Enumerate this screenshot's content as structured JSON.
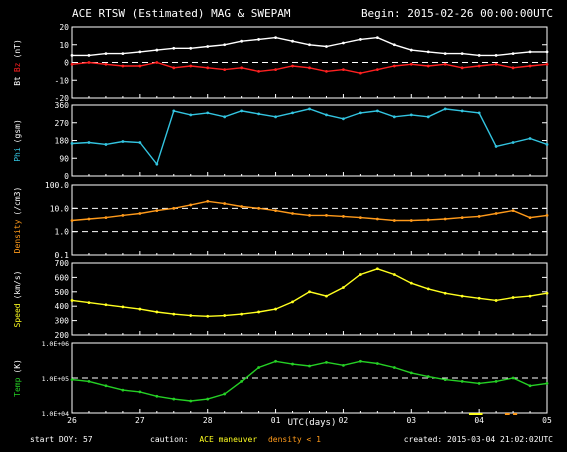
{
  "header": {
    "title": "ACE RTSW (Estimated) MAG & SWEPAM",
    "begin": "Begin: 2015-02-26 00:00:00UTC"
  },
  "footer": {
    "start_doy": "start DOY:  57",
    "caution_prefix": "caution:",
    "caution_ace": "ACE maneuver",
    "caution_density": "density < 1",
    "created": "created: 2015-03-04 21:02:02UTC"
  },
  "colors": {
    "frame": "#ffffff",
    "bt": "#ffffff",
    "bz": "#ff2020",
    "phi": "#33c4e0",
    "density": "#ff9a1a",
    "speed": "#ffff20",
    "temp": "#25d025",
    "maneuver": "#ffff20",
    "lowdensity": "#ff9a1a"
  },
  "chart_data": {
    "type": "line",
    "xlabel": "UTC(days)",
    "x_ticks": [
      "26",
      "27",
      "28",
      "01",
      "02",
      "03",
      "04",
      "05"
    ],
    "x_range_days": [
      0,
      7
    ],
    "x_values_days": [
      0,
      0.25,
      0.5,
      0.75,
      1.0,
      1.25,
      1.5,
      1.75,
      2.0,
      2.25,
      2.5,
      2.75,
      3.0,
      3.25,
      3.5,
      3.75,
      4.0,
      4.25,
      4.5,
      4.75,
      5.0,
      5.25,
      5.5,
      5.75,
      6.0,
      6.25,
      6.5,
      6.75,
      7.0
    ],
    "panels": [
      {
        "id": "mag",
        "ylabel_parts": [
          "Bt",
          "Bz",
          "(nT)"
        ],
        "ylim": [
          -20,
          20
        ],
        "scale": "linear",
        "yticks": [
          -20,
          -10,
          0,
          10,
          20
        ],
        "ytick_labels": [
          "-20",
          "-10",
          "0",
          "10",
          "20"
        ],
        "dashed": [
          0
        ],
        "series": [
          {
            "name": "Bt",
            "values": [
              4,
              4,
              5,
              5,
              6,
              7,
              8,
              8,
              9,
              10,
              12,
              13,
              14,
              12,
              10,
              9,
              11,
              13,
              14,
              10,
              7,
              6,
              5,
              5,
              4,
              4,
              5,
              6,
              6
            ]
          },
          {
            "name": "Bz",
            "values": [
              -1,
              0,
              -1,
              -2,
              -2,
              0,
              -3,
              -2,
              -3,
              -4,
              -3,
              -5,
              -4,
              -2,
              -3,
              -5,
              -4,
              -6,
              -4,
              -2,
              -1,
              -2,
              -1,
              -3,
              -2,
              -1,
              -3,
              -2,
              -1
            ]
          }
        ]
      },
      {
        "id": "phi",
        "ylabel_parts": [
          "Phi",
          "(gsm)"
        ],
        "ylim": [
          0,
          360
        ],
        "scale": "linear",
        "yticks": [
          0,
          90,
          180,
          270,
          360
        ],
        "ytick_labels": [
          "0",
          "90",
          "180",
          "270",
          "360"
        ],
        "dashed": [],
        "series": [
          {
            "name": "Phi",
            "values": [
              165,
              170,
              160,
              175,
              170,
              60,
              330,
              310,
              320,
              300,
              330,
              315,
              300,
              320,
              340,
              310,
              290,
              320,
              330,
              300,
              310,
              300,
              340,
              330,
              320,
              150,
              170,
              190,
              160
            ]
          }
        ]
      },
      {
        "id": "density",
        "ylabel_parts": [
          "Density",
          "(/cm3)"
        ],
        "ylim": [
          0.1,
          100
        ],
        "scale": "log",
        "yticks": [
          0.1,
          1,
          10,
          100
        ],
        "ytick_labels": [
          "0.1",
          "1.0",
          "10.0",
          "100.0"
        ],
        "dashed": [
          1,
          10
        ],
        "series": [
          {
            "name": "Density",
            "values": [
              3,
              3.5,
              4,
              5,
              6,
              8,
              10,
              14,
              20,
              16,
              12,
              10,
              8,
              6,
              5,
              5,
              4.5,
              4,
              3.5,
              3,
              3,
              3.2,
              3.5,
              4,
              4.5,
              6,
              8,
              4,
              5
            ]
          }
        ]
      },
      {
        "id": "speed",
        "ylabel_parts": [
          "Speed",
          "(km/s)"
        ],
        "ylim": [
          200,
          700
        ],
        "scale": "linear",
        "yticks": [
          200,
          300,
          400,
          500,
          600,
          700
        ],
        "ytick_labels": [
          "200",
          "300",
          "400",
          "500",
          "600",
          "700"
        ],
        "dashed": [],
        "series": [
          {
            "name": "Speed",
            "values": [
              440,
              425,
              410,
              395,
              380,
              360,
              345,
              335,
              330,
              335,
              345,
              360,
              380,
              430,
              500,
              470,
              530,
              620,
              660,
              620,
              560,
              520,
              490,
              470,
              455,
              440,
              460,
              470,
              490
            ]
          }
        ]
      },
      {
        "id": "temp",
        "ylabel_parts": [
          "Temp",
          "(K)"
        ],
        "ylim": [
          10000,
          1000000
        ],
        "scale": "log",
        "yticks": [
          10000,
          100000,
          1000000
        ],
        "ytick_labels": [
          "1.0E+04",
          "1.0E+05",
          "1.0E+06"
        ],
        "dashed": [
          100000
        ],
        "series": [
          {
            "name": "Temp",
            "values": [
              90000,
              80000,
              60000,
              45000,
              40000,
              30000,
              25000,
              22000,
              25000,
              35000,
              80000,
              200000,
              300000,
              250000,
              220000,
              280000,
              230000,
              300000,
              260000,
              200000,
              140000,
              110000,
              90000,
              80000,
              70000,
              80000,
              100000,
              60000,
              70000
            ]
          }
        ]
      }
    ],
    "annotations": {
      "maneuver_ranges_days": [
        [
          5.85,
          6.05
        ]
      ],
      "low_density_ranges_days": [
        [
          6.38,
          6.45
        ],
        [
          6.5,
          6.56
        ]
      ]
    }
  }
}
